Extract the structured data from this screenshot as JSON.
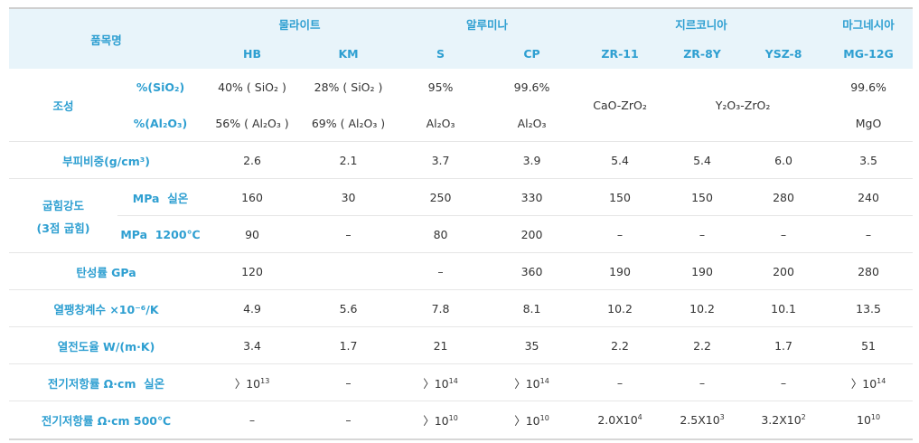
{
  "header": {
    "item": "품목명",
    "groups": {
      "mullite": "물라이트",
      "alumina": "알루미나",
      "zirconia": "지르코니아",
      "magnesia": "마그네시아"
    },
    "grades": [
      "HB",
      "KM",
      "S",
      "CP",
      "ZR-11",
      "ZR-8Y",
      "YSZ-8",
      "MG-12G"
    ]
  },
  "composition": {
    "label": "조성",
    "sio2_label": "%(SiO₂)",
    "al2o3_label": "%(Al₂O₃)",
    "row1": [
      "40% ( SiO₂ )",
      "28% ( SiO₂ )",
      "95%",
      "99.6%",
      "99.6%"
    ],
    "row2": [
      "56% ( Al₂O₃ )",
      "69% ( Al₂O₃ )",
      "Al₂O₃",
      "Al₂O₃",
      "MgO"
    ],
    "zr11": "CaO-ZrO₂",
    "zr8y_ysz8": "Y₂O₃-ZrO₂"
  },
  "rows": {
    "density": {
      "label": "부피비중(g/cm³)",
      "values": [
        "2.6",
        "2.1",
        "3.7",
        "3.9",
        "5.4",
        "5.4",
        "6.0",
        "3.5"
      ]
    },
    "bending": {
      "label_line1": "굽힘강도",
      "label_line2": "(3점 굽힘)",
      "room_label": "MPa  실온",
      "room_values": [
        "160",
        "30",
        "250",
        "330",
        "150",
        "150",
        "280",
        "240"
      ],
      "hot_label": "MPa  1200℃",
      "hot_values": [
        "90",
        "–",
        "80",
        "200",
        "–",
        "–",
        "–",
        "–"
      ]
    },
    "elastic": {
      "label": "탄성률 GPa",
      "values": [
        "120",
        "",
        "–",
        "360",
        "190",
        "190",
        "200",
        "280"
      ]
    },
    "expansion": {
      "label": "열팽창계수 ×10⁻⁶/K",
      "values": [
        "4.9",
        "5.6",
        "7.8",
        "8.1",
        "10.2",
        "10.2",
        "10.1",
        "13.5"
      ]
    },
    "conductivity": {
      "label": "열전도율 W/(m·K)",
      "values": [
        "3.4",
        "1.7",
        "21",
        "35",
        "2.2",
        "2.2",
        "1.7",
        "51"
      ]
    },
    "resistivity_room": {
      "label": "전기저항률 Ω·cm  실온",
      "values": [
        {
          "prefix": "〉10",
          "exp": "13"
        },
        {
          "prefix": "–",
          "exp": ""
        },
        {
          "prefix": "〉10",
          "exp": "14"
        },
        {
          "prefix": "〉10",
          "exp": "14"
        },
        {
          "prefix": "–",
          "exp": ""
        },
        {
          "prefix": "–",
          "exp": ""
        },
        {
          "prefix": "–",
          "exp": ""
        },
        {
          "prefix": "〉10",
          "exp": "14"
        }
      ]
    },
    "resistivity_500": {
      "label": "전기저항률 Ω·cm 500℃",
      "values": [
        {
          "prefix": "–",
          "exp": ""
        },
        {
          "prefix": "–",
          "exp": ""
        },
        {
          "prefix": "〉10",
          "exp": "10"
        },
        {
          "prefix": "〉10",
          "exp": "10"
        },
        {
          "prefix": "2.0X10",
          "exp": "4"
        },
        {
          "prefix": "2.5X10",
          "exp": "3"
        },
        {
          "prefix": "3.2X10",
          "exp": "2"
        },
        {
          "prefix": "10",
          "exp": "10"
        }
      ]
    }
  },
  "colors": {
    "accent": "#2e9fd1",
    "header_bg": "#e8f4fa",
    "text": "#333333"
  }
}
